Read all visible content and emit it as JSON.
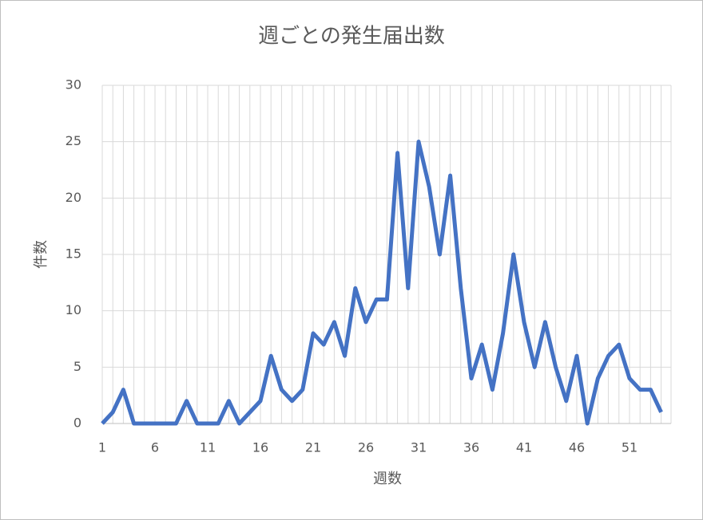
{
  "chart_data": {
    "type": "line",
    "title": "週ごとの発生届出数",
    "x_label": "週数",
    "y_label": "件数",
    "categories": [
      "1",
      null,
      null,
      null,
      null,
      "6",
      null,
      null,
      null,
      null,
      "11",
      null,
      null,
      null,
      null,
      "16",
      null,
      null,
      null,
      null,
      "21",
      null,
      null,
      null,
      null,
      "26",
      null,
      null,
      null,
      null,
      "31",
      null,
      null,
      null,
      null,
      "36",
      null,
      null,
      null,
      null,
      "41",
      null,
      null,
      null,
      null,
      "46",
      null,
      null,
      null,
      null,
      "51",
      null,
      null,
      null
    ],
    "series": [
      {
        "name": "件数",
        "color": "#4472c4",
        "values": [
          0,
          1,
          3,
          0,
          0,
          0,
          0,
          0,
          2,
          0,
          0,
          0,
          2,
          0,
          1,
          2,
          6,
          3,
          2,
          3,
          8,
          7,
          9,
          6,
          12,
          9,
          11,
          11,
          24,
          12,
          25,
          21,
          15,
          22,
          12,
          4,
          7,
          3,
          8,
          15,
          9,
          5,
          9,
          5,
          2,
          6,
          0,
          4,
          6,
          7,
          4,
          3,
          3,
          1
        ]
      }
    ],
    "ylim": [
      0,
      30
    ],
    "yticks": [
      0,
      5,
      10,
      15,
      20,
      25,
      30
    ],
    "grid": true
  }
}
